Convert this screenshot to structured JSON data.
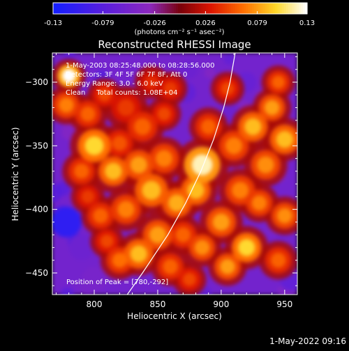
{
  "chart_data": {
    "type": "heatmap",
    "title": "Reconstructed RHESSI Image",
    "xlabel": "Heliocentric X (arcsec)",
    "ylabel": "Heliocentric Y (arcsec)",
    "xlim": [
      767,
      960
    ],
    "ylim": [
      -467,
      -277
    ],
    "x_ticks": [
      800,
      850,
      900,
      950
    ],
    "y_ticks": [
      -300,
      -350,
      -400,
      -450
    ],
    "colorbar": {
      "min": -0.13,
      "max": 0.13,
      "tick_values": [
        -0.13,
        -0.079,
        -0.026,
        0.026,
        0.079,
        0.13
      ],
      "tick_labels": [
        "-0.13",
        "-0.079",
        "-0.026",
        "0.026",
        "0.079",
        "0.13"
      ],
      "unit_label": "(photons cm⁻² s⁻¹ asec⁻²)"
    },
    "annotations": [
      "1-May-2003 08:25:48.000 to 08:28:56.000",
      "Detectors: 3F 4F 5F 6F 7F 8F, Att 0",
      "Energy Range: 3.0 - 6.0 keV",
      "Clean     Total counts: 1.08E+04"
    ],
    "peak_label": "Position of Peak = [780,-292]",
    "peak": [
      780,
      -292
    ],
    "limb_line": [
      [
        826,
        -467
      ],
      [
        838,
        -450
      ],
      [
        858,
        -420
      ],
      [
        872,
        -395
      ],
      [
        884,
        -370
      ],
      [
        894,
        -345
      ],
      [
        902,
        -320
      ],
      [
        907,
        -300
      ],
      [
        911,
        -277
      ]
    ],
    "blobs": [
      {
        "x": 780,
        "y": -295,
        "r": 7,
        "v": 0.13
      },
      {
        "x": 778,
        "y": -318,
        "r": 8,
        "v": 0.07
      },
      {
        "x": 795,
        "y": -325,
        "r": 8,
        "v": 0.06
      },
      {
        "x": 808,
        "y": -310,
        "r": 7,
        "v": 0.05
      },
      {
        "x": 825,
        "y": -320,
        "r": 9,
        "v": 0.045
      },
      {
        "x": 845,
        "y": -300,
        "r": 7,
        "v": 0.04
      },
      {
        "x": 838,
        "y": -335,
        "r": 9,
        "v": 0.06
      },
      {
        "x": 855,
        "y": -325,
        "r": 7,
        "v": 0.05
      },
      {
        "x": 820,
        "y": -348,
        "r": 8,
        "v": 0.055
      },
      {
        "x": 800,
        "y": -350,
        "r": 10,
        "v": 0.1
      },
      {
        "x": 790,
        "y": -370,
        "r": 8,
        "v": 0.06
      },
      {
        "x": 815,
        "y": -370,
        "r": 9,
        "v": 0.09
      },
      {
        "x": 835,
        "y": -365,
        "r": 9,
        "v": 0.08
      },
      {
        "x": 855,
        "y": -360,
        "r": 9,
        "v": 0.07
      },
      {
        "x": 845,
        "y": -385,
        "r": 10,
        "v": 0.09
      },
      {
        "x": 825,
        "y": -400,
        "r": 9,
        "v": 0.07
      },
      {
        "x": 805,
        "y": -405,
        "r": 8,
        "v": 0.06
      },
      {
        "x": 865,
        "y": -395,
        "r": 9,
        "v": 0.085
      },
      {
        "x": 885,
        "y": -365,
        "r": 11,
        "v": 0.12
      },
      {
        "x": 880,
        "y": -385,
        "r": 9,
        "v": 0.09
      },
      {
        "x": 890,
        "y": -335,
        "r": 8,
        "v": 0.06
      },
      {
        "x": 905,
        "y": -305,
        "r": 7,
        "v": 0.05
      },
      {
        "x": 910,
        "y": -350,
        "r": 9,
        "v": 0.07
      },
      {
        "x": 925,
        "y": -335,
        "r": 9,
        "v": 0.09
      },
      {
        "x": 940,
        "y": -320,
        "r": 8,
        "v": 0.08
      },
      {
        "x": 945,
        "y": -300,
        "r": 7,
        "v": 0.06
      },
      {
        "x": 950,
        "y": -345,
        "r": 9,
        "v": 0.09
      },
      {
        "x": 935,
        "y": -365,
        "r": 9,
        "v": 0.075
      },
      {
        "x": 915,
        "y": -385,
        "r": 9,
        "v": 0.07
      },
      {
        "x": 930,
        "y": -395,
        "r": 8,
        "v": 0.07
      },
      {
        "x": 950,
        "y": -405,
        "r": 8,
        "v": 0.075
      },
      {
        "x": 900,
        "y": -410,
        "r": 9,
        "v": 0.08
      },
      {
        "x": 920,
        "y": -430,
        "r": 9,
        "v": 0.1
      },
      {
        "x": 905,
        "y": -445,
        "r": 8,
        "v": 0.08
      },
      {
        "x": 885,
        "y": -430,
        "r": 8,
        "v": 0.075
      },
      {
        "x": 870,
        "y": -420,
        "r": 8,
        "v": 0.06
      },
      {
        "x": 850,
        "y": -420,
        "r": 9,
        "v": 0.08
      },
      {
        "x": 835,
        "y": -435,
        "r": 9,
        "v": 0.09
      },
      {
        "x": 820,
        "y": -440,
        "r": 8,
        "v": 0.065
      },
      {
        "x": 860,
        "y": -445,
        "r": 8,
        "v": 0.06
      },
      {
        "x": 875,
        "y": -455,
        "r": 7,
        "v": 0.05
      },
      {
        "x": 945,
        "y": -440,
        "r": 8,
        "v": 0.06
      },
      {
        "x": 810,
        "y": -425,
        "r": 7,
        "v": 0.05
      },
      {
        "x": 795,
        "y": -390,
        "r": 7,
        "v": 0.045
      },
      {
        "x": 860,
        "y": -305,
        "r": 7,
        "v": 0.045
      }
    ],
    "cold_spots": [
      {
        "x": 778,
        "y": -410,
        "r": 12,
        "v": -0.11
      },
      {
        "x": 790,
        "y": -430,
        "r": 10,
        "v": -0.06
      },
      {
        "x": 872,
        "y": -308,
        "r": 8,
        "v": -0.07
      },
      {
        "x": 905,
        "y": -325,
        "r": 9,
        "v": -0.06
      },
      {
        "x": 920,
        "y": -300,
        "r": 8,
        "v": -0.065
      },
      {
        "x": 955,
        "y": -455,
        "r": 9,
        "v": -0.07
      },
      {
        "x": 940,
        "y": -415,
        "r": 7,
        "v": -0.05
      },
      {
        "x": 800,
        "y": -455,
        "r": 10,
        "v": -0.05
      }
    ],
    "background_value": -0.055,
    "grid": false
  },
  "footer": {
    "timestamp": "1-May-2022 09:16"
  }
}
